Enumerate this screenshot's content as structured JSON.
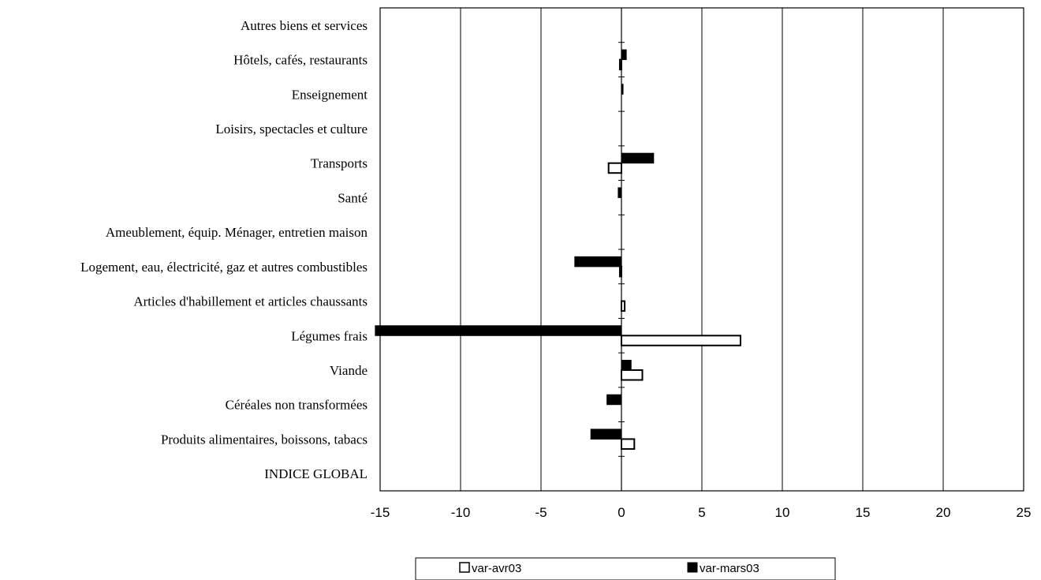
{
  "chart_data": {
    "type": "bar",
    "orientation": "horizontal",
    "categories": [
      "INDICE GLOBAL",
      "Produits alimentaires, boissons, tabacs",
      "Céréales non transformées",
      "Viande",
      "Légumes frais",
      "Articles d'habillement et articles chaussants",
      "Logement, eau, électricité, gaz et autres combustibles",
      "Ameublement, équip. Ménager, entretien maison",
      "Santé",
      "Transports",
      "Loisirs, spectacles et culture",
      "Enseignement",
      "Hôtels, cafés, restaurants",
      "Autres biens et services"
    ],
    "series": [
      {
        "name": "var-avr03",
        "color": "#ffffff",
        "values": [
          0,
          0.8,
          0,
          1.3,
          7.4,
          0.2,
          -0.1,
          0,
          0,
          -0.8,
          0,
          0,
          -0.1,
          0
        ]
      },
      {
        "name": "var-mars03",
        "color": "#000000",
        "values": [
          0,
          -1.9,
          -0.9,
          0.6,
          -15.3,
          0,
          -2.9,
          0,
          -0.2,
          2.0,
          0,
          0.1,
          0.3,
          0
        ]
      }
    ],
    "xlim": [
      -15,
      25
    ],
    "xticks": [
      "-15",
      "-10",
      "-5",
      "0",
      "5",
      "10",
      "15",
      "20",
      "25"
    ],
    "xticks_values": [
      -15,
      -10,
      -5,
      0,
      5,
      10,
      15,
      20,
      25
    ],
    "title": "",
    "xlabel": "",
    "ylabel": "",
    "grid": "vertical",
    "legend_position": "bottom"
  }
}
